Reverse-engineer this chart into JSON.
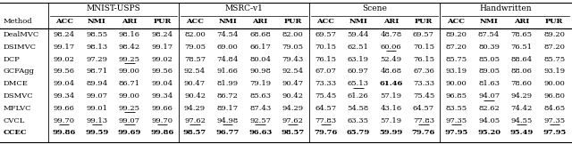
{
  "datasets": [
    "MNIST-USPS",
    "MSRC-v1",
    "Scene",
    "Handwritten"
  ],
  "metrics": [
    "ACC",
    "NMI",
    "ARI",
    "PUR"
  ],
  "methods": [
    "DealMVC",
    "DSIMVC",
    "DCP",
    "GCFAgg",
    "DMCE",
    "DSMVC",
    "MFLVC",
    "CVCL",
    "CCEC"
  ],
  "data": {
    "MNIST-USPS": {
      "DealMVC": [
        98.24,
        98.55,
        98.16,
        98.24
      ],
      "DSIMVC": [
        99.17,
        98.13,
        98.42,
        99.17
      ],
      "DCP": [
        99.02,
        97.29,
        99.25,
        99.02
      ],
      "GCFAgg": [
        99.56,
        98.71,
        99.0,
        99.56
      ],
      "DMCE": [
        99.04,
        89.94,
        86.71,
        99.04
      ],
      "DSMVC": [
        99.34,
        99.07,
        99.0,
        99.34
      ],
      "MFLVC": [
        99.66,
        99.01,
        99.25,
        99.66
      ],
      "CVCL": [
        99.7,
        99.13,
        99.07,
        99.7
      ],
      "CCEC": [
        99.86,
        99.59,
        99.69,
        99.86
      ]
    },
    "MSRC-v1": {
      "DealMVC": [
        82.0,
        74.54,
        68.68,
        82.0
      ],
      "DSIMVC": [
        79.05,
        69.0,
        66.17,
        79.05
      ],
      "DCP": [
        78.57,
        74.84,
        80.04,
        79.43
      ],
      "GCFAgg": [
        92.54,
        91.66,
        90.98,
        92.54
      ],
      "DMCE": [
        90.47,
        81.99,
        79.19,
        90.47
      ],
      "DSMVC": [
        90.42,
        86.72,
        85.63,
        90.42
      ],
      "MFLVC": [
        94.29,
        89.17,
        87.43,
        94.29
      ],
      "CVCL": [
        97.62,
        94.98,
        92.57,
        97.62
      ],
      "CCEC": [
        98.57,
        96.77,
        96.63,
        98.57
      ]
    },
    "Scene": {
      "DealMVC": [
        69.57,
        59.44,
        48.78,
        69.57
      ],
      "DSIMVC": [
        70.15,
        62.51,
        60.06,
        70.15
      ],
      "DCP": [
        76.15,
        63.19,
        52.49,
        76.15
      ],
      "GCFAgg": [
        67.07,
        60.97,
        48.68,
        67.36
      ],
      "DMCE": [
        73.33,
        65.13,
        61.46,
        73.33
      ],
      "DSMVC": [
        75.45,
        61.26,
        57.19,
        75.45
      ],
      "MFLVC": [
        64.57,
        54.58,
        43.16,
        64.57
      ],
      "CVCL": [
        77.83,
        63.35,
        57.19,
        77.83
      ],
      "CCEC": [
        79.76,
        65.79,
        59.99,
        79.76
      ]
    },
    "Handwritten": {
      "DealMVC": [
        89.2,
        87.54,
        78.65,
        89.2
      ],
      "DSIMVC": [
        87.2,
        80.39,
        76.51,
        87.2
      ],
      "DCP": [
        85.75,
        85.05,
        88.64,
        85.75
      ],
      "GCFAgg": [
        93.19,
        89.05,
        88.06,
        93.19
      ],
      "DMCE": [
        90.0,
        81.63,
        78.6,
        90.0
      ],
      "DSMVC": [
        96.85,
        94.07,
        94.29,
        96.8
      ],
      "MFLVC": [
        83.55,
        82.62,
        74.42,
        84.65
      ],
      "CVCL": [
        97.35,
        94.05,
        94.55,
        97.35
      ],
      "CCEC": [
        97.95,
        95.2,
        95.49,
        97.95
      ]
    }
  },
  "bold": {
    "MNIST-USPS": {
      "CCEC": [
        0,
        1,
        2,
        3
      ]
    },
    "MSRC-v1": {
      "CCEC": [
        0,
        1,
        2,
        3
      ]
    },
    "Scene": {
      "CCEC": [
        0,
        1,
        2,
        3
      ],
      "DMCE": [
        2
      ]
    },
    "Handwritten": {
      "CCEC": [
        0,
        1,
        2,
        3
      ]
    }
  },
  "underline": {
    "MNIST-USPS": {
      "DCP": [
        2
      ],
      "MFLVC": [
        2
      ],
      "CVCL": [
        0,
        1,
        2,
        3
      ]
    },
    "MSRC-v1": {
      "CVCL": [
        0,
        1,
        2,
        3
      ]
    },
    "Scene": {
      "DSIMVC": [
        2
      ],
      "DMCE": [
        1
      ],
      "CVCL": [
        0,
        3
      ]
    },
    "Handwritten": {
      "DSMVC": [
        1
      ],
      "CVCL": [
        0,
        2,
        3
      ]
    }
  },
  "font_size": 6.0,
  "title_font_size": 6.5,
  "fig_width": 6.4,
  "fig_height": 1.62,
  "dpi": 100
}
